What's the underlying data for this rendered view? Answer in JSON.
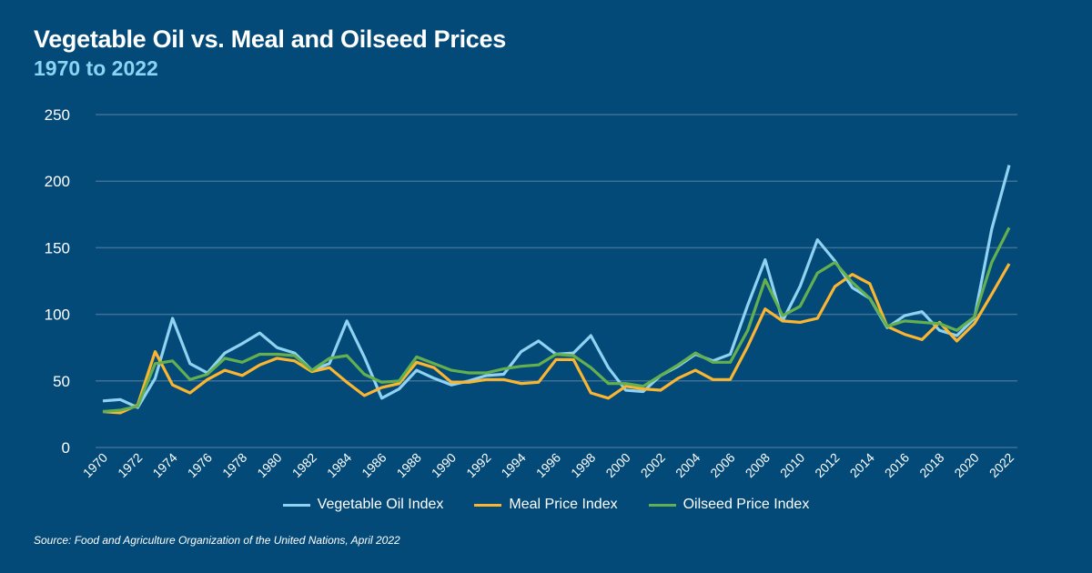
{
  "chart_data": {
    "type": "line",
    "title": "Vegetable Oil vs. Meal and Oilseed Prices",
    "subtitle": "1970 to 2022",
    "xlabel": "",
    "ylabel": "",
    "ylim": [
      0,
      250
    ],
    "yticks": [
      "0",
      "50",
      "100",
      "150",
      "200",
      "250"
    ],
    "xticks": [
      "1970",
      "1972",
      "1974",
      "1976",
      "1978",
      "1980",
      "1982",
      "1984",
      "1986",
      "1988",
      "1990",
      "1992",
      "1994",
      "1996",
      "1998",
      "2000",
      "2002",
      "2004",
      "2006",
      "2008",
      "2010",
      "2012",
      "2014",
      "2016",
      "2018",
      "2020",
      "2022"
    ],
    "x_start": 1970,
    "grid": true,
    "legend_position": "bottom",
    "series": [
      {
        "name": "Vegetable Oil Index",
        "color": "#8fd2f2",
        "values": [
          35,
          36,
          30,
          52,
          97,
          63,
          56,
          71,
          78,
          86,
          75,
          71,
          58,
          63,
          95,
          68,
          37,
          44,
          58,
          52,
          47,
          50,
          54,
          55,
          72,
          80,
          70,
          71,
          84,
          60,
          43,
          42,
          54,
          61,
          70,
          65,
          70,
          107,
          141,
          95,
          121,
          156,
          140,
          120,
          112,
          90,
          99,
          102,
          88,
          84,
          97,
          164,
          212
        ]
      },
      {
        "name": "Meal Price Index",
        "color": "#fbb631",
        "values": [
          27,
          26,
          32,
          72,
          47,
          41,
          51,
          58,
          54,
          62,
          67,
          65,
          57,
          60,
          49,
          39,
          45,
          48,
          64,
          60,
          49,
          49,
          51,
          51,
          48,
          49,
          66,
          66,
          41,
          37,
          46,
          44,
          43,
          52,
          58,
          51,
          51,
          76,
          104,
          95,
          94,
          97,
          121,
          130,
          123,
          91,
          85,
          81,
          94,
          80,
          93,
          115,
          138
        ]
      },
      {
        "name": "Oilseed Price Index",
        "color": "#64b04f",
        "values": [
          27,
          28,
          31,
          63,
          65,
          51,
          55,
          67,
          64,
          70,
          70,
          69,
          58,
          67,
          69,
          55,
          49,
          50,
          68,
          63,
          58,
          56,
          56,
          59,
          61,
          62,
          70,
          69,
          60,
          48,
          48,
          46,
          54,
          62,
          71,
          64,
          64,
          88,
          126,
          99,
          106,
          131,
          139,
          124,
          112,
          91,
          95,
          94,
          93,
          88,
          98,
          139,
          165
        ]
      }
    ]
  },
  "source": "Source: Food and Agriculture Organization of the United Nations, April 2022"
}
